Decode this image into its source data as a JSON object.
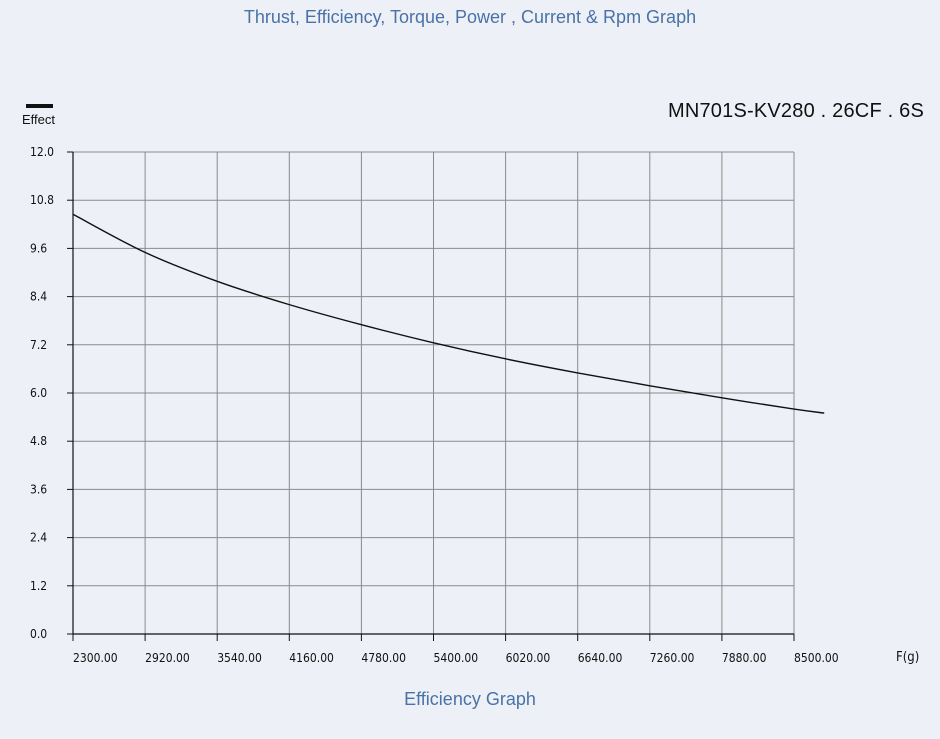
{
  "header": {
    "title": "Thrust, Efficiency, Torque, Power , Current & Rpm Graph"
  },
  "model": "MN701S-KV280 . 26CF . 6S",
  "legend": {
    "label": "Effect",
    "color": "#111111"
  },
  "footer": {
    "title": "Efficiency Graph"
  },
  "chart_data": {
    "type": "line",
    "title": "Efficiency Graph",
    "xlabel": "F(g)",
    "ylabel": "",
    "xlim": [
      2300,
      8500
    ],
    "ylim": [
      0,
      12
    ],
    "x_ticks": [
      "2300.00",
      "2920.00",
      "3540.00",
      "4160.00",
      "4780.00",
      "5400.00",
      "6020.00",
      "6640.00",
      "7260.00",
      "7880.00",
      "8500.00"
    ],
    "y_ticks": [
      "0.0",
      "1.2",
      "2.4",
      "3.6",
      "4.8",
      "6.0",
      "7.2",
      "8.4",
      "9.6",
      "10.8",
      "12.0"
    ],
    "grid": true,
    "legend_position": "top-left",
    "series": [
      {
        "name": "Effect",
        "color": "#111111",
        "x": [
          2300,
          2920,
          3540,
          4160,
          4780,
          5400,
          6020,
          6640,
          7260,
          7880,
          8500,
          8760
        ],
        "y": [
          10.45,
          9.5,
          8.78,
          8.2,
          7.7,
          7.25,
          6.85,
          6.5,
          6.18,
          5.88,
          5.6,
          5.5
        ]
      }
    ]
  }
}
